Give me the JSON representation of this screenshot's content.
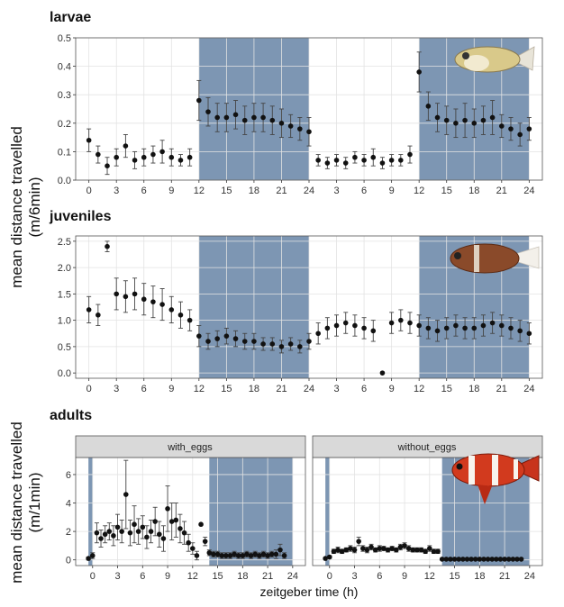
{
  "chart_data": {
    "type": "scatter",
    "x_axis_title": "zeitgeber time (h)",
    "panels": [
      {
        "title": "larvae",
        "ylabel": "mean distance travelled (m/6min)",
        "ylabel_lines": [
          "mean distance travelled",
          "(m/6min)"
        ],
        "ylim": [
          0,
          0.5
        ],
        "y_ticks": [
          0.0,
          0.1,
          0.2,
          0.3,
          0.4,
          0.5
        ],
        "y_tick_labels": [
          "0.0",
          "0.1",
          "0.2",
          "0.3",
          "0.4",
          "0.5"
        ],
        "x_range_hours": [
          0,
          48
        ],
        "x_ticks_hours": [
          0,
          3,
          6,
          9,
          12,
          15,
          18,
          21,
          24,
          27,
          30,
          33,
          36,
          39,
          42,
          45,
          48
        ],
        "x_tick_labels": [
          "0",
          "3",
          "6",
          "9",
          "12",
          "15",
          "18",
          "21",
          "24",
          "3",
          "6",
          "9",
          "12",
          "15",
          "18",
          "21",
          "24"
        ],
        "dark_periods_hours": [
          [
            12,
            24
          ],
          [
            36,
            48
          ]
        ],
        "illustration": "larval-fish-icon",
        "series": [
          {
            "name": "mean",
            "x_hours": [
              0,
              1,
              2,
              3,
              4,
              5,
              6,
              7,
              8,
              9,
              10,
              11,
              12,
              13,
              14,
              15,
              16,
              17,
              18,
              19,
              20,
              21,
              22,
              23,
              24,
              25,
              26,
              27,
              28,
              29,
              30,
              31,
              32,
              33,
              34,
              35,
              36,
              37,
              38,
              39,
              40,
              41,
              42,
              43,
              44,
              45,
              46,
              47,
              48
            ],
            "values": [
              0.14,
              0.09,
              0.05,
              0.08,
              0.12,
              0.07,
              0.08,
              0.09,
              0.1,
              0.08,
              0.07,
              0.08,
              0.28,
              0.24,
              0.22,
              0.22,
              0.23,
              0.21,
              0.22,
              0.22,
              0.21,
              0.2,
              0.19,
              0.18,
              0.17,
              0.07,
              0.06,
              0.07,
              0.06,
              0.08,
              0.07,
              0.08,
              0.06,
              0.07,
              0.07,
              0.09,
              0.38,
              0.26,
              0.22,
              0.21,
              0.2,
              0.21,
              0.2,
              0.21,
              0.22,
              0.19,
              0.18,
              0.16,
              0.18
            ],
            "errors": [
              0.04,
              0.03,
              0.03,
              0.03,
              0.04,
              0.03,
              0.03,
              0.03,
              0.04,
              0.03,
              0.02,
              0.03,
              0.07,
              0.05,
              0.05,
              0.05,
              0.05,
              0.05,
              0.05,
              0.05,
              0.05,
              0.05,
              0.04,
              0.04,
              0.05,
              0.02,
              0.02,
              0.02,
              0.02,
              0.02,
              0.02,
              0.03,
              0.02,
              0.02,
              0.02,
              0.03,
              0.07,
              0.05,
              0.05,
              0.05,
              0.05,
              0.06,
              0.05,
              0.05,
              0.06,
              0.04,
              0.04,
              0.04,
              0.04
            ]
          }
        ]
      },
      {
        "title": "juveniles",
        "ylim": [
          -0.1,
          2.6
        ],
        "y_ticks": [
          0.0,
          0.5,
          1.0,
          1.5,
          2.0,
          2.5
        ],
        "y_tick_labels": [
          "0.0",
          "0.5",
          "1.0",
          "1.5",
          "2.0",
          "2.5"
        ],
        "x_range_hours": [
          0,
          48
        ],
        "x_ticks_hours": [
          0,
          3,
          6,
          9,
          12,
          15,
          18,
          21,
          24,
          27,
          30,
          33,
          36,
          39,
          42,
          45,
          48
        ],
        "x_tick_labels": [
          "0",
          "3",
          "6",
          "9",
          "12",
          "15",
          "18",
          "21",
          "24",
          "3",
          "6",
          "9",
          "12",
          "15",
          "18",
          "21",
          "24"
        ],
        "dark_periods_hours": [
          [
            12,
            24
          ],
          [
            36,
            48
          ]
        ],
        "illustration": "juvenile-fish-icon",
        "series": [
          {
            "name": "mean",
            "x_hours": [
              0,
              1,
              2,
              3,
              4,
              5,
              6,
              7,
              8,
              9,
              10,
              11,
              12,
              13,
              14,
              15,
              16,
              17,
              18,
              19,
              20,
              21,
              22,
              23,
              24,
              25,
              26,
              27,
              28,
              29,
              30,
              31,
              32,
              33,
              34,
              35,
              36,
              37,
              38,
              39,
              40,
              41,
              42,
              43,
              44,
              45,
              46,
              47,
              48
            ],
            "values": [
              1.2,
              1.1,
              2.4,
              1.5,
              1.45,
              1.5,
              1.4,
              1.35,
              1.3,
              1.2,
              1.1,
              1.0,
              0.7,
              0.6,
              0.65,
              0.7,
              0.65,
              0.6,
              0.6,
              0.55,
              0.55,
              0.5,
              0.55,
              0.5,
              0.6,
              0.75,
              0.85,
              0.9,
              0.95,
              0.9,
              0.85,
              0.8,
              0.0,
              0.95,
              1.0,
              0.95,
              0.9,
              0.85,
              0.8,
              0.85,
              0.9,
              0.85,
              0.85,
              0.9,
              0.95,
              0.9,
              0.85,
              0.8,
              0.75
            ],
            "errors": [
              0.25,
              0.2,
              0.1,
              0.3,
              0.3,
              0.3,
              0.3,
              0.3,
              0.3,
              0.25,
              0.25,
              0.2,
              0.2,
              0.15,
              0.15,
              0.15,
              0.15,
              0.15,
              0.15,
              0.12,
              0.12,
              0.12,
              0.12,
              0.12,
              0.15,
              0.2,
              0.2,
              0.2,
              0.2,
              0.2,
              0.2,
              0.2,
              0.0,
              0.2,
              0.2,
              0.2,
              0.2,
              0.2,
              0.2,
              0.2,
              0.2,
              0.2,
              0.2,
              0.2,
              0.2,
              0.2,
              0.2,
              0.2,
              0.2
            ]
          }
        ]
      },
      {
        "title": "adults",
        "ylabel": "mean distance travelled (m/1min)",
        "ylabel_lines": [
          "mean distance travelled",
          "(m/1min)"
        ],
        "ylim": [
          -0.4,
          7.2
        ],
        "y_ticks": [
          0,
          2,
          4,
          6
        ],
        "y_tick_labels": [
          "0",
          "2",
          "4",
          "6"
        ],
        "x_range_hours": [
          -1.5,
          25
        ],
        "x_ticks_hours": [
          0,
          3,
          6,
          9,
          12,
          15,
          18,
          21,
          24
        ],
        "x_tick_labels": [
          "0",
          "3",
          "6",
          "9",
          "12",
          "15",
          "18",
          "21",
          "24"
        ],
        "facets": [
          {
            "strip_label": "with_eggs",
            "dark_periods_hours": [
              [
                -0.5,
                0
              ],
              [
                14,
                24
              ]
            ],
            "series": [
              {
                "name": "mean",
                "x_hours": [
                  -0.5,
                  0,
                  0.5,
                  1,
                  1.5,
                  2,
                  2.5,
                  3,
                  3.5,
                  4,
                  4.5,
                  5,
                  5.5,
                  6,
                  6.5,
                  7,
                  7.5,
                  8,
                  8.5,
                  9,
                  9.5,
                  10,
                  10.5,
                  11,
                  11.5,
                  12,
                  12.5,
                  13,
                  13.5,
                  14,
                  14.5,
                  15,
                  15.5,
                  16,
                  16.5,
                  17,
                  17.5,
                  18,
                  18.5,
                  19,
                  19.5,
                  20,
                  20.5,
                  21,
                  21.5,
                  22,
                  22.5,
                  23
                ],
                "values": [
                  0.1,
                  0.3,
                  1.9,
                  1.5,
                  1.8,
                  2.0,
                  1.7,
                  2.3,
                  2.0,
                  4.6,
                  1.9,
                  2.5,
                  2.0,
                  2.3,
                  1.6,
                  2.0,
                  2.7,
                  1.8,
                  1.5,
                  3.6,
                  2.7,
                  2.8,
                  2.2,
                  1.9,
                  1.2,
                  0.8,
                  0.3,
                  2.5,
                  1.3,
                  0.5,
                  0.4,
                  0.4,
                  0.3,
                  0.3,
                  0.3,
                  0.4,
                  0.3,
                  0.3,
                  0.4,
                  0.3,
                  0.4,
                  0.3,
                  0.4,
                  0.3,
                  0.4,
                  0.4,
                  0.7,
                  0.3
                ],
                "errors": [
                  0.1,
                  0.2,
                  0.7,
                  0.6,
                  0.6,
                  0.6,
                  0.7,
                  0.9,
                  0.8,
                  2.4,
                  0.9,
                  1.3,
                  0.9,
                  0.8,
                  0.8,
                  0.8,
                  1.0,
                  0.9,
                  0.9,
                  1.6,
                  1.3,
                  1.2,
                  1.0,
                  0.8,
                  0.6,
                  0.4,
                  0.3,
                  0.0,
                  0.3,
                  0.2,
                  0.2,
                  0.2,
                  0.2,
                  0.2,
                  0.2,
                  0.2,
                  0.2,
                  0.2,
                  0.2,
                  0.2,
                  0.2,
                  0.2,
                  0.2,
                  0.2,
                  0.2,
                  0.3,
                  0.4,
                  0.2
                ]
              }
            ]
          },
          {
            "strip_label": "without_eggs",
            "dark_periods_hours": [
              [
                -0.5,
                0
              ],
              [
                13.5,
                24
              ]
            ],
            "illustration": "clownfish-icon",
            "series": [
              {
                "name": "mean",
                "x_hours": [
                  -0.5,
                  0,
                  0.5,
                  1,
                  1.5,
                  2,
                  2.5,
                  3,
                  3.5,
                  4,
                  4.5,
                  5,
                  5.5,
                  6,
                  6.5,
                  7,
                  7.5,
                  8,
                  8.5,
                  9,
                  9.5,
                  10,
                  10.5,
                  11,
                  11.5,
                  12,
                  12.5,
                  13,
                  13.5,
                  14,
                  14.5,
                  15,
                  15.5,
                  16,
                  16.5,
                  17,
                  17.5,
                  18,
                  18.5,
                  19,
                  19.5,
                  20,
                  20.5,
                  21,
                  21.5,
                  22,
                  22.5,
                  23
                ],
                "values": [
                  0.1,
                  0.2,
                  0.6,
                  0.7,
                  0.6,
                  0.7,
                  0.8,
                  0.7,
                  1.3,
                  0.8,
                  0.7,
                  0.9,
                  0.7,
                  0.8,
                  0.8,
                  0.7,
                  0.8,
                  0.7,
                  0.9,
                  1.0,
                  0.8,
                  0.7,
                  0.7,
                  0.7,
                  0.6,
                  0.8,
                  0.6,
                  0.6,
                  0.05,
                  0.05,
                  0.05,
                  0.05,
                  0.05,
                  0.05,
                  0.05,
                  0.05,
                  0.05,
                  0.05,
                  0.05,
                  0.05,
                  0.05,
                  0.05,
                  0.05,
                  0.05,
                  0.05,
                  0.05,
                  0.05,
                  0.05
                ],
                "errors": [
                  0.05,
                  0.1,
                  0.15,
                  0.2,
                  0.15,
                  0.15,
                  0.2,
                  0.2,
                  0.3,
                  0.2,
                  0.2,
                  0.2,
                  0.15,
                  0.2,
                  0.15,
                  0.15,
                  0.15,
                  0.15,
                  0.2,
                  0.2,
                  0.2,
                  0.15,
                  0.15,
                  0.15,
                  0.15,
                  0.2,
                  0.15,
                  0.15,
                  0.02,
                  0.02,
                  0.02,
                  0.02,
                  0.02,
                  0.02,
                  0.02,
                  0.02,
                  0.02,
                  0.02,
                  0.02,
                  0.02,
                  0.02,
                  0.02,
                  0.02,
                  0.02,
                  0.02,
                  0.02,
                  0.02,
                  0.02
                ]
              }
            ]
          }
        ]
      }
    ],
    "colors": {
      "night_shade": "#7d96b3",
      "panel_background": "#ffffff",
      "grid": "#e3e3e3",
      "points": "#111111",
      "strip_background": "#d9d9d9"
    }
  }
}
